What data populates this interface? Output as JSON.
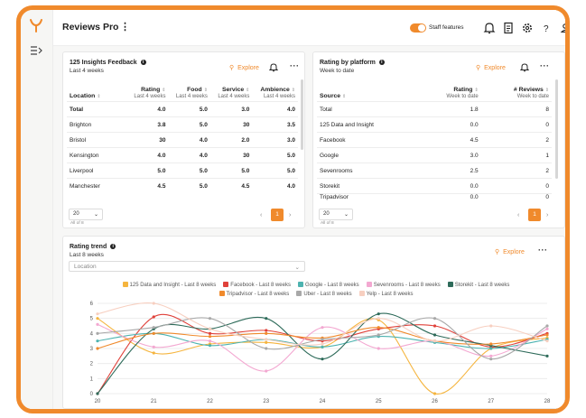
{
  "app": {
    "title": "Reviews Pro",
    "staff_features_label": "Staff features"
  },
  "icons": [
    "logo-icon",
    "expand-sidebar-icon",
    "kebab-icon",
    "bell-icon",
    "document-icon",
    "gear-icon",
    "help-icon",
    "user-icon",
    "search-icon",
    "info-icon"
  ],
  "colors": {
    "accent": "#f08a2c"
  },
  "feedback_card": {
    "title": "125 Insights Feedback",
    "subtitle": "Last 4 weeks",
    "explore_label": "Explore",
    "columns": [
      {
        "name": "Location",
        "sub": ""
      },
      {
        "name": "Rating",
        "sub": "Last 4 weeks"
      },
      {
        "name": "Food",
        "sub": "Last 4 weeks"
      },
      {
        "name": "Service",
        "sub": "Last 4 weeks"
      },
      {
        "name": "Ambience",
        "sub": "Last 4 weeks"
      }
    ],
    "rows": [
      [
        "Total",
        "4.0",
        "5.0",
        "3.0",
        "4.0"
      ],
      [
        "Brighton",
        "3.8",
        "5.0",
        "30",
        "3.5"
      ],
      [
        "Bristol",
        "30",
        "4.0",
        "2.0",
        "3.0"
      ],
      [
        "Kensington",
        "4.0",
        "4.0",
        "30",
        "5.0"
      ],
      [
        "Liverpool",
        "5.0",
        "5.0",
        "5.0",
        "5.0"
      ],
      [
        "Manchester",
        "4.5",
        "5.0",
        "4.5",
        "4.0"
      ]
    ],
    "page_size": "20",
    "count_note": "All of 8",
    "current_page": "1"
  },
  "platform_card": {
    "title": "Rating by platform",
    "subtitle": "Week to date",
    "explore_label": "Explore",
    "columns": [
      {
        "name": "Source",
        "sub": ""
      },
      {
        "name": "Rating",
        "sub": "Week to date"
      },
      {
        "name": "# Reviews",
        "sub": "Week to date"
      }
    ],
    "rows": [
      [
        "Total",
        "1.8",
        "8"
      ],
      [
        "125 Data and Insight",
        "0.0",
        "0"
      ],
      [
        "Facebook",
        "4.5",
        "2"
      ],
      [
        "Google",
        "3.0",
        "1"
      ],
      [
        "Sevenrooms",
        "2.5",
        "2"
      ],
      [
        "Storekit",
        "0.0",
        "0"
      ],
      [
        "Tripadvisor",
        "0.0",
        "0"
      ]
    ],
    "page_size": "20",
    "count_note": "All of 8",
    "current_page": "1"
  },
  "trend_card": {
    "title": "Rating trend",
    "subtitle": "Last 8 weeks",
    "explore_label": "Explore",
    "filter_placeholder": "Location"
  },
  "chart_data": {
    "type": "line",
    "title": "Rating trend",
    "x": [
      20,
      21,
      22,
      23,
      24,
      25,
      26,
      27,
      28
    ],
    "ylim": [
      0,
      6
    ],
    "yticks": [
      0,
      1,
      2,
      3,
      4,
      5,
      6
    ],
    "grid": true,
    "legend_position": "top",
    "series": [
      {
        "name": "125 Data and Insight - Last 8 weeks",
        "color": "#f5b53f",
        "values": [
          5.0,
          2.7,
          3.3,
          3.4,
          3.1,
          4.9,
          0.0,
          3.0,
          3.7
        ]
      },
      {
        "name": "Facebook - Last 8 weeks",
        "color": "#e0413a",
        "values": [
          0.0,
          5.1,
          4.0,
          4.2,
          3.5,
          4.3,
          4.5,
          3.1,
          4.0
        ]
      },
      {
        "name": "Google - Last 8 weeks",
        "color": "#4db3b0",
        "values": [
          3.5,
          4.0,
          3.2,
          3.6,
          3.1,
          3.8,
          3.4,
          3.0,
          3.6
        ]
      },
      {
        "name": "Sevenrooms - Last 8 weeks",
        "color": "#f3a8d1",
        "values": [
          4.6,
          3.1,
          3.5,
          1.5,
          4.4,
          3.0,
          3.5,
          2.5,
          4.3
        ]
      },
      {
        "name": "Storekit - Last 8 weeks",
        "color": "#2e6b5a",
        "values": [
          0.0,
          4.3,
          4.3,
          5.0,
          2.3,
          5.3,
          3.9,
          3.2,
          2.5
        ]
      },
      {
        "name": "Tripadvisor - Last 8 weeks",
        "color": "#f08a2c",
        "values": [
          3.0,
          4.0,
          3.8,
          4.0,
          3.7,
          4.4,
          3.5,
          3.3,
          3.9
        ]
      },
      {
        "name": "Uber - Last 8 weeks",
        "color": "#a8a8a8",
        "values": [
          4.0,
          4.4,
          5.0,
          3.0,
          3.6,
          3.9,
          5.0,
          2.3,
          4.5
        ]
      },
      {
        "name": "Yelp - Last 8 weeks",
        "color": "#f7cfc0",
        "values": [
          5.3,
          6.0,
          4.3,
          3.6,
          3.3,
          5.0,
          3.5,
          4.5,
          3.5
        ]
      }
    ]
  }
}
